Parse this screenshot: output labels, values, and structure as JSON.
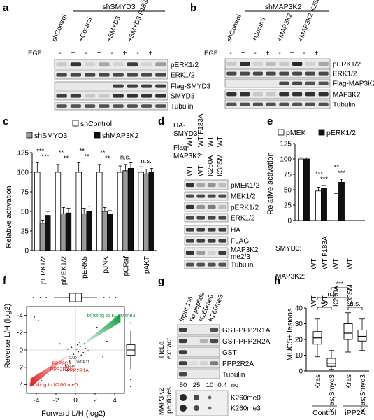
{
  "panels": {
    "a": {
      "letter": "a",
      "group_label": "shSMYD3",
      "lane_headers": [
        "shControl",
        "+Control",
        "+SMYD3",
        "+SMYD3 F183A"
      ],
      "egf_label": "EGF:",
      "egf_signs": [
        "-",
        "+",
        "-",
        "+",
        "-",
        "+",
        "-",
        "+"
      ],
      "bands": [
        "pERK1/2",
        "ERK1/2",
        "Flag-SMYD3",
        "SMYD3",
        "Tubulin"
      ]
    },
    "b": {
      "letter": "b",
      "group_label": "shMAP3K2",
      "lane_headers": [
        "shControl",
        "+Control",
        "+MAP3K2",
        "+MAP3K2 K260A"
      ],
      "egf_label": "EGF:",
      "egf_signs": [
        "-",
        "+",
        "-",
        "+",
        "-",
        "+",
        "-",
        "+"
      ],
      "bands": [
        "pERK1/2",
        "ERK1/2",
        "Flag-MAP3K2",
        "MAP3K2",
        "Tubulin"
      ]
    },
    "c": {
      "letter": "c",
      "chart_data": {
        "type": "bar",
        "categories": [
          "pERK1/2",
          "pMEK1/2",
          "pERK5",
          "pJNK",
          "pCRaf",
          "pAKT"
        ],
        "series": [
          {
            "name": "shControl",
            "color": "#ffffff",
            "values": [
              100,
              100,
              100,
              100,
              100,
              100
            ],
            "errors": [
              12,
              10,
              12,
              10,
              8,
              7
            ]
          },
          {
            "name": "shSMYD3",
            "color": "#9a9a9a",
            "values": [
              35,
              47,
              47,
              50,
              102,
              98
            ],
            "errors": [
              4,
              8,
              7,
              5,
              8,
              6
            ]
          },
          {
            "name": "shMAP3K2",
            "color": "#111111",
            "values": [
              45,
              48,
              50,
              47,
              105,
              100
            ],
            "errors": [
              5,
              6,
              6,
              4,
              7,
              5
            ]
          }
        ],
        "ylabel": "Relative activation",
        "ylim": [
          0,
          125
        ],
        "yticks": [
          "0",
          "25",
          "50",
          "75",
          "100",
          "125"
        ],
        "significance": [
          "***\n***",
          "**\n**",
          "**\n**",
          "**\n**",
          "n.s.",
          "n.s."
        ]
      }
    },
    "d": {
      "letter": "d",
      "row1_label": "HA-\nSMYD3:",
      "row1_values": [
        "WT",
        "WT F183A",
        "WT",
        "WT"
      ],
      "row2_label": "Flag-\nMAP3K2:",
      "row2_values": [
        "WT",
        "WT",
        "K260A",
        "K385M"
      ],
      "bands": [
        "pMEK1/2",
        "MEK1/2",
        "pERK1/2",
        "ERK1/2",
        "HA",
        "FLAG",
        "MAP3K2 me2/3",
        "Tubulin"
      ]
    },
    "e": {
      "letter": "e",
      "chart_data": {
        "type": "bar",
        "categories": [
          "WT/WT",
          "F183A/WT",
          "WT/K260A",
          "WT/K385M"
        ],
        "series": [
          {
            "name": "pMEK",
            "color": "#ffffff",
            "values": [
              100,
              48,
              38,
              0
            ],
            "errors": [
              2,
              6,
              6,
              0
            ]
          },
          {
            "name": "pERK1/2",
            "color": "#111111",
            "values": [
              100,
              52,
              62,
              0
            ],
            "errors": [
              2,
              5,
              5,
              0
            ]
          }
        ],
        "ylabel": "Relative activation",
        "ylim": [
          0,
          125
        ],
        "yticks": [
          "0",
          "25",
          "50",
          "75",
          "100",
          "125"
        ],
        "significance": [
          "",
          "***\n***",
          "**\n***",
          ""
        ]
      },
      "smyd3_label": "SMYD3:",
      "smyd3_values": [
        "WT",
        "WT F183A",
        "WT",
        "WT"
      ],
      "map3k2_label": "MAP3K2:",
      "map3k2_values": [
        "WT",
        "WT",
        "K260A",
        "K385M"
      ]
    },
    "f": {
      "letter": "f",
      "chart_data": {
        "type": "scatter",
        "xlabel": "Forward L/H (log2)",
        "ylabel": "Reverse L/H (log2)",
        "xlim": [
          -5,
          5
        ],
        "ylim": [
          -5,
          5
        ],
        "xticks": [
          "-4",
          "-2",
          "0",
          "2",
          "4"
        ],
        "yticks": [
          "4",
          "2",
          "0",
          "-2",
          "-4"
        ],
        "annotations": {
          "green": "binding to K260 me3",
          "red": "binding to K260 me0",
          "ppp2ca": "PPP2CA",
          "ppp2r2a": "PPP2R2A",
          "ppp2r1a": "PPP2R1A",
          "cad": "CAD",
          "wdr11": "WDR11",
          "gfhn": "GFHN"
        },
        "points": [
          {
            "x": -3.5,
            "y": -3.5
          },
          {
            "x": -2.8,
            "y": -2.8
          },
          {
            "x": -1.2,
            "y": -1.5
          },
          {
            "x": -1.0,
            "y": -1.8
          },
          {
            "x": -0.6,
            "y": -1.3
          },
          {
            "x": 0.3,
            "y": -0.2
          },
          {
            "x": 0.5,
            "y": 0.4
          },
          {
            "x": 0.8,
            "y": -0.3
          },
          {
            "x": -0.4,
            "y": 0.3
          },
          {
            "x": 0.2,
            "y": 0.6
          },
          {
            "x": 1.0,
            "y": 0.2
          },
          {
            "x": -0.2,
            "y": -0.5
          },
          {
            "x": 0.6,
            "y": -0.6
          },
          {
            "x": 0.9,
            "y": 0.7
          },
          {
            "x": 1.3,
            "y": -0.1
          },
          {
            "x": -0.8,
            "y": 0.1
          },
          {
            "x": 0.1,
            "y": 0.1
          },
          {
            "x": 0.4,
            "y": 0.9
          },
          {
            "x": -4.2,
            "y": 3.8
          },
          {
            "x": -3.8,
            "y": 3.4
          },
          {
            "x": 2.2,
            "y": 2.6
          },
          {
            "x": -1.6,
            "y": 0.7
          },
          {
            "x": 2.8,
            "y": -0.8
          },
          {
            "x": 3.2,
            "y": 1.0
          }
        ]
      }
    },
    "g": {
      "letter": "g",
      "col_headers": [
        "input 1%",
        "no peptide",
        "K260me0",
        "K260me3"
      ],
      "side_label_1": "HeLa\nextract",
      "bands": [
        "GST-PPP2R1A",
        "GST-PPP2R2A",
        "GST",
        "PPP2R2A",
        "Tubulin"
      ],
      "side_label_2": "MAP3K2\npeptides",
      "dilutions": [
        "50",
        "25",
        "10",
        "0.4"
      ],
      "dilution_unit": "ng",
      "dot_rows": [
        "K260me0",
        "K260me3"
      ]
    },
    "h": {
      "letter": "h",
      "chart_data": {
        "type": "box",
        "ylabel": "MUC5+ lesions",
        "ylim": [
          0,
          40
        ],
        "yticks": [
          "0",
          "10",
          "20",
          "30",
          "40"
        ],
        "categories": [
          "Kras",
          "Kras;Smyd3",
          "Kras",
          "Kras;Smyd3"
        ],
        "groups": [
          "Control",
          "iPP2A"
        ],
        "boxes": [
          {
            "min": 9,
            "q1": 17,
            "median": 21,
            "q3": 25,
            "max": 33
          },
          {
            "min": 1,
            "q1": 3,
            "median": 5,
            "q3": 8,
            "max": 13
          },
          {
            "min": 12,
            "q1": 20,
            "median": 24,
            "q3": 30,
            "max": 37
          },
          {
            "min": 13,
            "q1": 19,
            "median": 22,
            "q3": 26,
            "max": 33
          }
        ],
        "comparisons": [
          {
            "label": "***",
            "from": 0,
            "to": 1
          },
          {
            "label": "n.s.",
            "from": 0,
            "to": 2
          },
          {
            "label": "***",
            "from": 1,
            "to": 2
          },
          {
            "label": "n.s.",
            "from": 2,
            "to": 3
          }
        ]
      }
    }
  }
}
